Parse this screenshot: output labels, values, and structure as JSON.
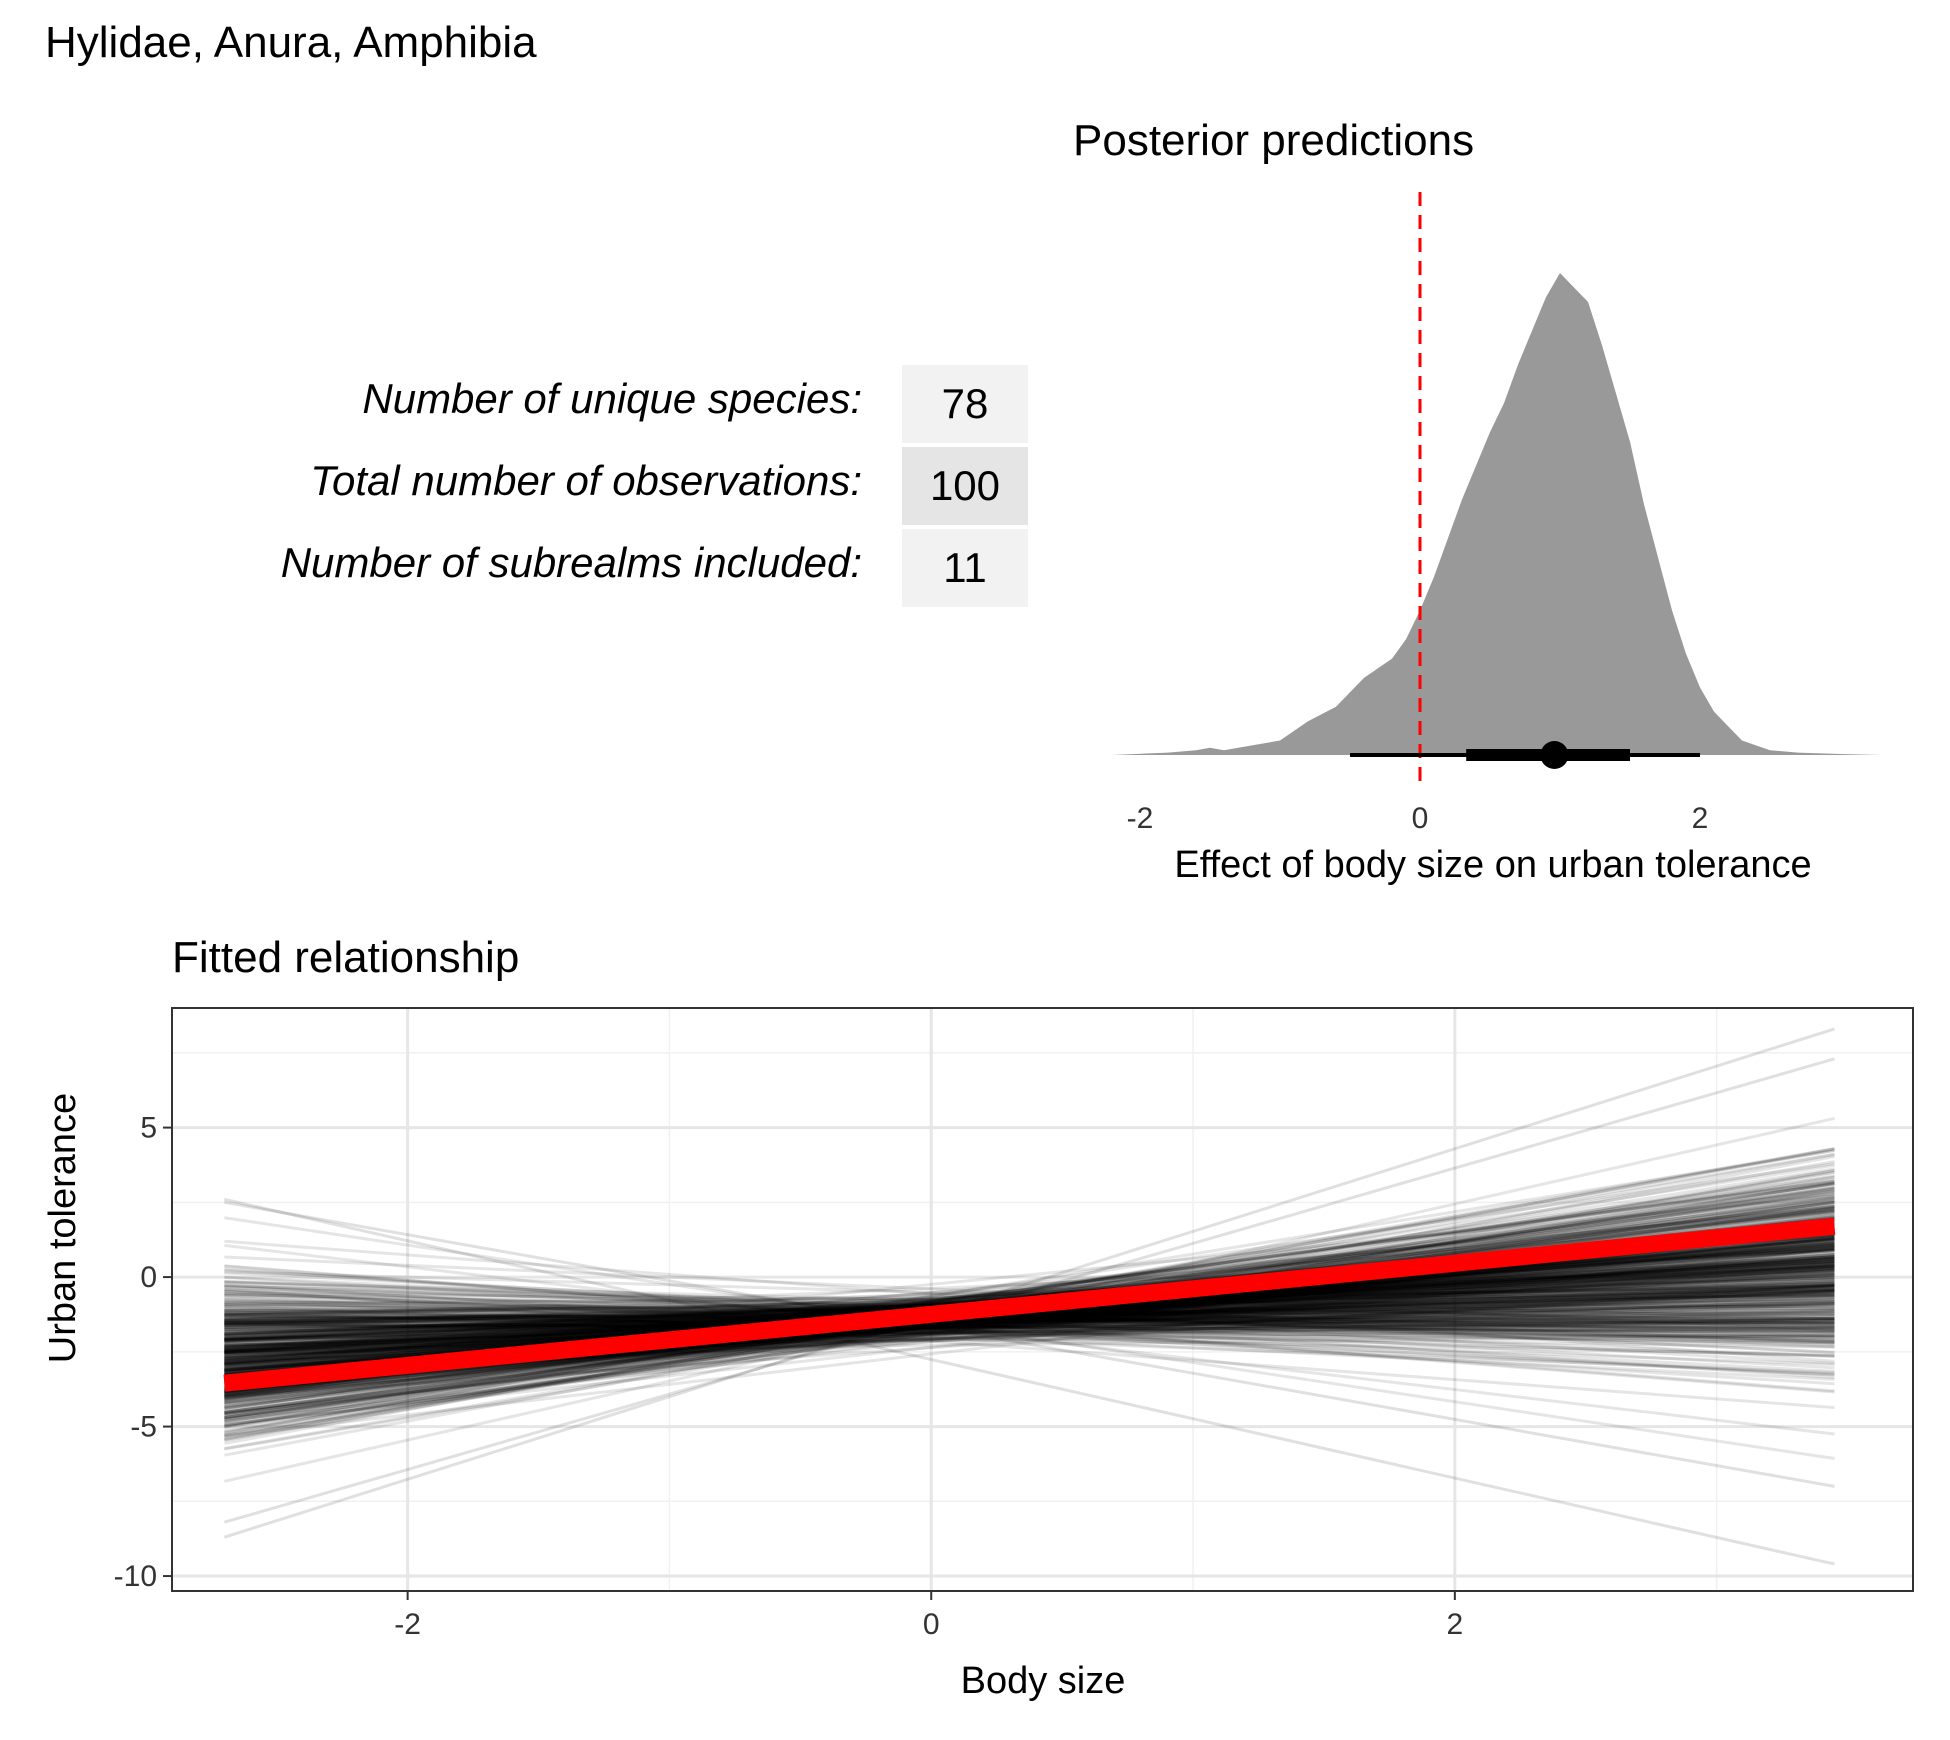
{
  "page_title": "Hylidae, Anura, Amphibia",
  "stats_table": [
    {
      "label": "Number of unique species:",
      "value": "78",
      "fill": "#f2f2f2"
    },
    {
      "label": "Total number of observations:",
      "value": "100",
      "fill": "#e5e5e5"
    },
    {
      "label": "Number of subrealms included:",
      "value": "11",
      "fill": "#f2f2f2"
    }
  ],
  "chart_data": [
    {
      "type": "area",
      "title": "Posterior predictions",
      "xlabel": "Effect of body size on urban tolerance",
      "ylabel": "",
      "xlim": [
        -2.2,
        3.3
      ],
      "x_ticks": [
        "-2",
        "0",
        "2"
      ],
      "x_tick_values": [
        -2,
        0,
        2
      ],
      "reference_line": {
        "x": 0,
        "color": "#ff0000",
        "style": "dashed"
      },
      "density": {
        "fill": "#999999",
        "x": [
          -2.2,
          -1.8,
          -1.6,
          -1.5,
          -1.4,
          -1.2,
          -1.0,
          -0.8,
          -0.6,
          -0.5,
          -0.4,
          -0.3,
          -0.2,
          -0.1,
          0.0,
          0.1,
          0.2,
          0.3,
          0.4,
          0.5,
          0.6,
          0.7,
          0.8,
          0.9,
          1.0,
          1.1,
          1.2,
          1.3,
          1.4,
          1.5,
          1.6,
          1.7,
          1.8,
          1.9,
          2.0,
          2.1,
          2.2,
          2.3,
          2.4,
          2.5,
          2.7,
          3.0,
          3.3
        ],
        "y": [
          0,
          0.005,
          0.01,
          0.015,
          0.01,
          0.02,
          0.03,
          0.07,
          0.1,
          0.13,
          0.16,
          0.18,
          0.2,
          0.24,
          0.3,
          0.37,
          0.45,
          0.53,
          0.6,
          0.67,
          0.73,
          0.81,
          0.88,
          0.95,
          1.0,
          0.97,
          0.94,
          0.85,
          0.75,
          0.65,
          0.52,
          0.41,
          0.3,
          0.21,
          0.14,
          0.09,
          0.06,
          0.03,
          0.02,
          0.01,
          0.005,
          0.002,
          0
        ]
      },
      "point_interval": {
        "point": 0.96,
        "inner": [
          0.33,
          1.5
        ],
        "outer": [
          -0.5,
          2.0
        ]
      }
    },
    {
      "type": "line",
      "title": "Fitted relationship",
      "xlabel": "Body size",
      "ylabel": "Urban tolerance",
      "xlim": [
        -2.9,
        3.75
      ],
      "ylim": [
        -10.5,
        9.0
      ],
      "x_ticks": [
        "-2",
        "0",
        "2"
      ],
      "x_tick_values": [
        -2,
        0,
        2
      ],
      "y_ticks": [
        "-10",
        "-5",
        "0",
        "5"
      ],
      "y_tick_values": [
        -10,
        -5,
        0,
        5
      ],
      "x_range": [
        -2.7,
        3.45
      ],
      "posterior_draws": {
        "count": 600,
        "color": "#000000",
        "pivot_x": 0,
        "intercept_mean": -1.35,
        "intercept_sd": 0.35,
        "slope_mean": 0.5,
        "slope_sd": 0.45,
        "extreme_draws": [
          {
            "x": [
              -2.7,
              3.45
            ],
            "y": [
              -8.7,
              8.3
            ]
          },
          {
            "x": [
              -2.7,
              3.45
            ],
            "y": [
              2.6,
              -9.6
            ]
          },
          {
            "x": [
              -2.7,
              3.45
            ],
            "y": [
              2.5,
              -7.0
            ]
          },
          {
            "x": [
              -2.7,
              3.45
            ],
            "y": [
              -8.2,
              7.3
            ]
          }
        ]
      },
      "mean_line": {
        "x": [
          -2.7,
          3.45
        ],
        "y": [
          -3.55,
          1.7
        ],
        "color": "#ff0000"
      }
    }
  ]
}
